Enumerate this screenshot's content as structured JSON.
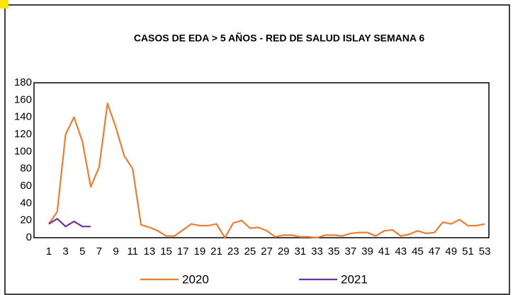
{
  "chart_data": {
    "type": "line",
    "title": "CASOS DE EDA > 5 AÑOS - RED DE SALUD ISLAY SEMANA 6",
    "categories": [
      1,
      null,
      3,
      null,
      5,
      null,
      7,
      null,
      9,
      null,
      11,
      null,
      13,
      null,
      15,
      null,
      17,
      null,
      19,
      null,
      21,
      null,
      23,
      null,
      25,
      null,
      27,
      null,
      29,
      null,
      31,
      null,
      33,
      null,
      35,
      null,
      37,
      null,
      39,
      null,
      41,
      null,
      43,
      null,
      45,
      null,
      47,
      null,
      49,
      null,
      51,
      null,
      53
    ],
    "series": [
      {
        "name": "2020",
        "color": "#ed7d31",
        "values": [
          16,
          30,
          120,
          140,
          112,
          59,
          82,
          156,
          128,
          95,
          80,
          15,
          12,
          8,
          2,
          2,
          9,
          16,
          14,
          14,
          16,
          0,
          17,
          20,
          11,
          12,
          8,
          1,
          3,
          3,
          1,
          1,
          0,
          3,
          3,
          2,
          5,
          6,
          6,
          2,
          8,
          9,
          2,
          4,
          8,
          5,
          6,
          18,
          16,
          21,
          14,
          14,
          16
        ]
      },
      {
        "name": "2021",
        "color": "#7030a0",
        "values": [
          16,
          22,
          13,
          19,
          13,
          13,
          null,
          null,
          null,
          null,
          null,
          null,
          null,
          null,
          null,
          null,
          null,
          null,
          null,
          null,
          null,
          null,
          null,
          null,
          null,
          null,
          null,
          null,
          null,
          null,
          null,
          null,
          null,
          null,
          null,
          null,
          null,
          null,
          null,
          null,
          null,
          null,
          null,
          null,
          null,
          null,
          null,
          null,
          null,
          null,
          null,
          null,
          null
        ]
      }
    ],
    "ylim": [
      0,
      180
    ],
    "yticks": [
      0,
      20,
      40,
      60,
      80,
      100,
      120,
      140,
      160,
      180
    ],
    "legend": "bottom"
  }
}
